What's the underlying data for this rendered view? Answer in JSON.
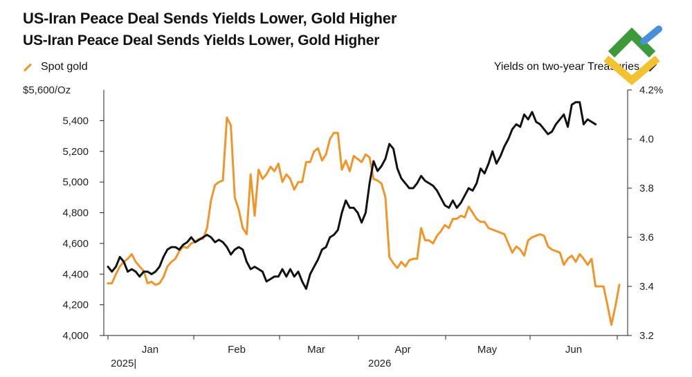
{
  "title": "US-Iran Peace Deal Sends Yields Lower, Gold Higher",
  "subtitle": "US-Iran Peace Deal Sends Yields Lower, Gold Higher",
  "colors": {
    "gold": "#F0952A",
    "yields": "#111111",
    "logo_green": "#3C9A3A",
    "logo_blue": "#4A90D9",
    "logo_yellow": "#F2C230"
  },
  "chart_data": {
    "type": "line",
    "title": "US-Iran Peace Deal Sends Yields Lower, Gold Higher",
    "legend": {
      "placement": "top",
      "left_entry": "Spot gold",
      "right_entry": "Yields on two-year Treasuries"
    },
    "x_axis": {
      "month_labels": [
        "Jan",
        "Feb",
        "Mar",
        "Apr",
        "May",
        "Jun"
      ],
      "year_labels": [
        "2025|",
        "2026"
      ],
      "range_index": [
        0,
        129
      ]
    },
    "y_left": {
      "label": "$5,600/Oz",
      "ticks": [
        "4,000",
        "4,200",
        "4,400",
        "4,600",
        "4,800",
        "5,000",
        "5,200",
        "5,400"
      ],
      "tick_values": [
        4000,
        4200,
        4400,
        4600,
        4800,
        5000,
        5200,
        5400
      ],
      "ylim": [
        4000,
        5600
      ]
    },
    "y_right": {
      "ticks": [
        "3.2",
        "3.4",
        "3.6",
        "3.8",
        "4.0",
        "4.2%"
      ],
      "tick_values": [
        3.2,
        3.4,
        3.6,
        3.8,
        4.0,
        4.2
      ],
      "ylim": [
        3.2,
        4.2
      ]
    },
    "grid": false,
    "series": [
      {
        "name": "Spot gold",
        "axis": "left",
        "color": "#F0952A",
        "points": [
          [
            0,
            4340
          ],
          [
            1,
            4340
          ],
          [
            2,
            4400
          ],
          [
            3,
            4450
          ],
          [
            4,
            4480
          ],
          [
            5,
            4500
          ],
          [
            6,
            4530
          ],
          [
            7,
            4480
          ],
          [
            8,
            4450
          ],
          [
            9,
            4420
          ],
          [
            10,
            4340
          ],
          [
            11,
            4350
          ],
          [
            12,
            4330
          ],
          [
            13,
            4340
          ],
          [
            14,
            4380
          ],
          [
            15,
            4450
          ],
          [
            16,
            4480
          ],
          [
            17,
            4500
          ],
          [
            18,
            4550
          ],
          [
            19,
            4580
          ],
          [
            20,
            4570
          ],
          [
            21,
            4600
          ],
          [
            22,
            4610
          ],
          [
            23,
            4630
          ],
          [
            24,
            4630
          ],
          [
            25,
            4700
          ],
          [
            26,
            4880
          ],
          [
            27,
            4980
          ],
          [
            28,
            5000
          ],
          [
            29,
            5010
          ],
          [
            30,
            5420
          ],
          [
            31,
            5370
          ],
          [
            32,
            4900
          ],
          [
            33,
            4820
          ],
          [
            34,
            4700
          ],
          [
            35,
            4660
          ],
          [
            36,
            5050
          ],
          [
            37,
            4780
          ],
          [
            38,
            5080
          ],
          [
            39,
            5020
          ],
          [
            40,
            5050
          ],
          [
            41,
            5100
          ],
          [
            42,
            5070
          ],
          [
            43,
            5120
          ],
          [
            44,
            5000
          ],
          [
            45,
            5050
          ],
          [
            46,
            5020
          ],
          [
            47,
            4950
          ],
          [
            48,
            5000
          ],
          [
            49,
            5000
          ],
          [
            50,
            5130
          ],
          [
            51,
            5130
          ],
          [
            52,
            5200
          ],
          [
            53,
            5220
          ],
          [
            54,
            5140
          ],
          [
            55,
            5180
          ],
          [
            56,
            5280
          ],
          [
            57,
            5320
          ],
          [
            58,
            5320
          ],
          [
            59,
            5080
          ],
          [
            60,
            5140
          ],
          [
            61,
            5070
          ],
          [
            62,
            5170
          ],
          [
            63,
            5150
          ],
          [
            64,
            5130
          ],
          [
            65,
            5180
          ],
          [
            66,
            5160
          ],
          [
            67,
            5020
          ],
          [
            68,
            5010
          ],
          [
            69,
            4990
          ],
          [
            70,
            4900
          ],
          [
            71,
            4510
          ],
          [
            72,
            4470
          ],
          [
            73,
            4440
          ],
          [
            74,
            4480
          ],
          [
            75,
            4450
          ],
          [
            76,
            4490
          ],
          [
            77,
            4500
          ],
          [
            78,
            4500
          ],
          [
            79,
            4700
          ],
          [
            80,
            4620
          ],
          [
            81,
            4620
          ],
          [
            82,
            4600
          ],
          [
            83,
            4650
          ],
          [
            84,
            4680
          ],
          [
            85,
            4720
          ],
          [
            86,
            4700
          ],
          [
            87,
            4760
          ],
          [
            88,
            4760
          ],
          [
            89,
            4780
          ],
          [
            90,
            4770
          ],
          [
            91,
            4840
          ],
          [
            92,
            4800
          ],
          [
            93,
            4760
          ],
          [
            94,
            4740
          ],
          [
            95,
            4740
          ],
          [
            96,
            4700
          ],
          [
            97,
            4690
          ],
          [
            98,
            4680
          ],
          [
            99,
            4670
          ],
          [
            100,
            4660
          ],
          [
            101,
            4600
          ],
          [
            102,
            4540
          ],
          [
            103,
            4580
          ],
          [
            104,
            4560
          ],
          [
            105,
            4520
          ],
          [
            106,
            4620
          ],
          [
            107,
            4640
          ],
          [
            108,
            4650
          ],
          [
            109,
            4660
          ],
          [
            110,
            4650
          ],
          [
            111,
            4580
          ],
          [
            112,
            4560
          ],
          [
            113,
            4550
          ],
          [
            114,
            4540
          ],
          [
            115,
            4460
          ],
          [
            116,
            4500
          ],
          [
            117,
            4520
          ],
          [
            118,
            4480
          ],
          [
            119,
            4530
          ],
          [
            120,
            4500
          ],
          [
            121,
            4460
          ],
          [
            122,
            4500
          ],
          [
            123,
            4320
          ],
          [
            124,
            4320
          ],
          [
            125,
            4320
          ],
          [
            126,
            4200
          ],
          [
            127,
            4070
          ],
          [
            128,
            4190
          ],
          [
            129,
            4330
          ]
        ]
      },
      {
        "name": "Yields on two-year Treasuries",
        "axis": "right",
        "color": "#111111",
        "points": [
          [
            0,
            3.48
          ],
          [
            1,
            3.46
          ],
          [
            2,
            3.48
          ],
          [
            3,
            3.52
          ],
          [
            4,
            3.5
          ],
          [
            5,
            3.46
          ],
          [
            6,
            3.47
          ],
          [
            7,
            3.46
          ],
          [
            8,
            3.44
          ],
          [
            9,
            3.46
          ],
          [
            10,
            3.46
          ],
          [
            11,
            3.45
          ],
          [
            12,
            3.46
          ],
          [
            13,
            3.48
          ],
          [
            14,
            3.52
          ],
          [
            15,
            3.55
          ],
          [
            16,
            3.56
          ],
          [
            17,
            3.56
          ],
          [
            18,
            3.55
          ],
          [
            19,
            3.57
          ],
          [
            20,
            3.58
          ],
          [
            21,
            3.6
          ],
          [
            22,
            3.58
          ],
          [
            23,
            3.59
          ],
          [
            24,
            3.6
          ],
          [
            25,
            3.61
          ],
          [
            26,
            3.6
          ],
          [
            27,
            3.58
          ],
          [
            28,
            3.59
          ],
          [
            29,
            3.58
          ],
          [
            30,
            3.56
          ],
          [
            31,
            3.53
          ],
          [
            32,
            3.55
          ],
          [
            33,
            3.56
          ],
          [
            34,
            3.55
          ],
          [
            35,
            3.5
          ],
          [
            36,
            3.47
          ],
          [
            37,
            3.48
          ],
          [
            38,
            3.47
          ],
          [
            39,
            3.46
          ],
          [
            40,
            3.42
          ],
          [
            41,
            3.43
          ],
          [
            42,
            3.44
          ],
          [
            43,
            3.44
          ],
          [
            44,
            3.47
          ],
          [
            45,
            3.44
          ],
          [
            46,
            3.47
          ],
          [
            47,
            3.44
          ],
          [
            48,
            3.46
          ],
          [
            49,
            3.42
          ],
          [
            50,
            3.39
          ],
          [
            51,
            3.45
          ],
          [
            52,
            3.48
          ],
          [
            53,
            3.51
          ],
          [
            54,
            3.55
          ],
          [
            55,
            3.56
          ],
          [
            56,
            3.6
          ],
          [
            57,
            3.61
          ],
          [
            58,
            3.63
          ],
          [
            59,
            3.7
          ],
          [
            60,
            3.75
          ],
          [
            61,
            3.72
          ],
          [
            62,
            3.72
          ],
          [
            63,
            3.7
          ],
          [
            64,
            3.66
          ],
          [
            65,
            3.7
          ],
          [
            66,
            3.82
          ],
          [
            67,
            3.91
          ],
          [
            68,
            3.87
          ],
          [
            69,
            3.89
          ],
          [
            70,
            3.92
          ],
          [
            71,
            3.98
          ],
          [
            72,
            3.96
          ],
          [
            73,
            3.88
          ],
          [
            74,
            3.84
          ],
          [
            75,
            3.82
          ],
          [
            76,
            3.8
          ],
          [
            77,
            3.8
          ],
          [
            78,
            3.82
          ],
          [
            79,
            3.85
          ],
          [
            80,
            3.83
          ],
          [
            81,
            3.82
          ],
          [
            82,
            3.81
          ],
          [
            83,
            3.79
          ],
          [
            84,
            3.76
          ],
          [
            85,
            3.73
          ],
          [
            86,
            3.72
          ],
          [
            87,
            3.75
          ],
          [
            88,
            3.72
          ],
          [
            89,
            3.74
          ],
          [
            90,
            3.77
          ],
          [
            91,
            3.8
          ],
          [
            92,
            3.79
          ],
          [
            93,
            3.82
          ],
          [
            94,
            3.88
          ],
          [
            95,
            3.86
          ],
          [
            96,
            3.9
          ],
          [
            97,
            3.95
          ],
          [
            98,
            3.9
          ],
          [
            99,
            3.93
          ],
          [
            100,
            3.97
          ],
          [
            101,
            4.0
          ],
          [
            102,
            4.04
          ],
          [
            103,
            4.06
          ],
          [
            104,
            4.05
          ],
          [
            105,
            4.1
          ],
          [
            106,
            4.08
          ],
          [
            107,
            4.11
          ],
          [
            108,
            4.07
          ],
          [
            109,
            4.06
          ],
          [
            110,
            4.04
          ],
          [
            111,
            4.02
          ],
          [
            112,
            4.03
          ],
          [
            113,
            4.06
          ],
          [
            114,
            4.08
          ],
          [
            115,
            4.1
          ],
          [
            116,
            4.05
          ],
          [
            117,
            4.14
          ],
          [
            118,
            4.15
          ],
          [
            119,
            4.15
          ],
          [
            120,
            4.06
          ],
          [
            121,
            4.08
          ],
          [
            122,
            4.07
          ],
          [
            123,
            4.06
          ]
        ]
      }
    ]
  }
}
